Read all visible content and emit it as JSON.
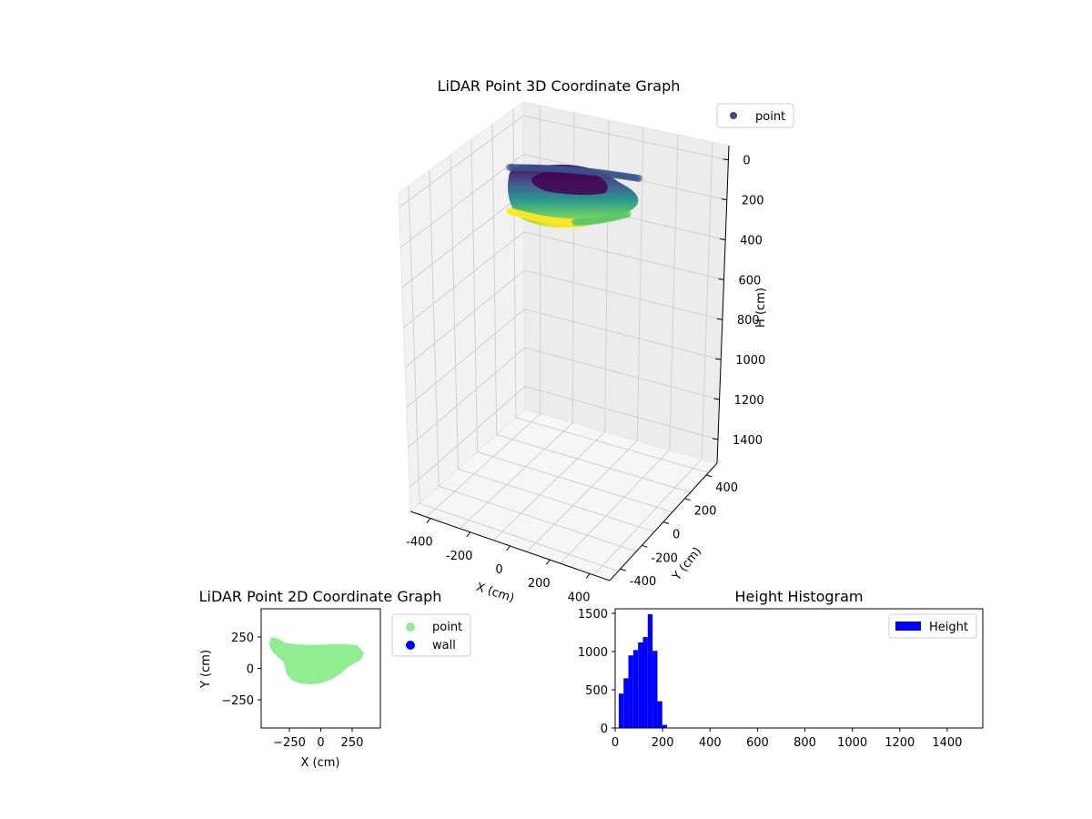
{
  "chart_data": [
    {
      "type": "scatter",
      "projection": "3d",
      "title": "LiDAR Point 3D Coordinate Graph",
      "xlabel": "X (cm)",
      "ylabel": "Y (cm)",
      "zlabel": "H (cm)",
      "xticks": [
        "-400",
        "-200",
        "0",
        "200",
        "400"
      ],
      "yticks": [
        "-400",
        "-200",
        "0",
        "200",
        "400"
      ],
      "zticks": [
        "0",
        "200",
        "400",
        "600",
        "800",
        "1000",
        "1200",
        "1400"
      ],
      "zlim": [
        0,
        1500
      ],
      "z_inverted": true,
      "grid": true,
      "legend": {
        "entries": [
          "point"
        ],
        "placement": "top-right"
      },
      "colormap": "viridis",
      "series": [
        {
          "name": "point",
          "color": "#3b4a8c",
          "x_range": [
            -400,
            330
          ],
          "y_range": [
            -100,
            230
          ],
          "h_range": [
            0,
            250
          ]
        }
      ]
    },
    {
      "type": "scatter",
      "title": "LiDAR Point 2D Coordinate Graph",
      "xlabel": "X (cm)",
      "ylabel": "Y (cm)",
      "xticks": [
        "−250",
        "0",
        "250"
      ],
      "yticks": [
        "250",
        "0",
        "−250"
      ],
      "xlim": [
        -475,
        475
      ],
      "ylim": [
        -475,
        475
      ],
      "legend": {
        "entries": [
          "point",
          "wall"
        ],
        "placement": "outside-right"
      },
      "series": [
        {
          "name": "point",
          "color": "#90ee90",
          "outline": [
            [
              -380,
              225
            ],
            [
              -340,
              215
            ],
            [
              -300,
              185
            ],
            [
              -200,
              170
            ],
            [
              -100,
              165
            ],
            [
              0,
              168
            ],
            [
              100,
              170
            ],
            [
              200,
              170
            ],
            [
              280,
              165
            ],
            [
              320,
              120
            ],
            [
              300,
              80
            ],
            [
              250,
              55
            ],
            [
              200,
              25
            ],
            [
              150,
              -20
            ],
            [
              100,
              -55
            ],
            [
              50,
              -80
            ],
            [
              -20,
              -100
            ],
            [
              -80,
              -105
            ],
            [
              -150,
              -100
            ],
            [
              -210,
              -80
            ],
            [
              -250,
              -40
            ],
            [
              -260,
              0
            ],
            [
              -280,
              70
            ],
            [
              -330,
              110
            ],
            [
              -370,
              150
            ],
            [
              -390,
              200
            ]
          ]
        },
        {
          "name": "wall",
          "color": "#0000ff",
          "points": []
        }
      ]
    },
    {
      "type": "bar",
      "title": "Height Histogram",
      "xlabel": "",
      "ylabel": "",
      "xticks": [
        "0",
        "200",
        "400",
        "600",
        "800",
        "1000",
        "1200",
        "1400"
      ],
      "yticks": [
        "0",
        "500",
        "1000",
        "1500"
      ],
      "xlim": [
        0,
        1550
      ],
      "ylim": [
        0,
        1560
      ],
      "legend": {
        "entries": [
          "Height"
        ],
        "placement": "upper right"
      },
      "series": [
        {
          "name": "Height",
          "color": "#0000ff",
          "bin_width": 20.4,
          "bin_edges_start": 15,
          "values": [
            450,
            650,
            950,
            1020,
            1120,
            1190,
            1490,
            1010,
            350,
            40
          ]
        }
      ]
    }
  ]
}
